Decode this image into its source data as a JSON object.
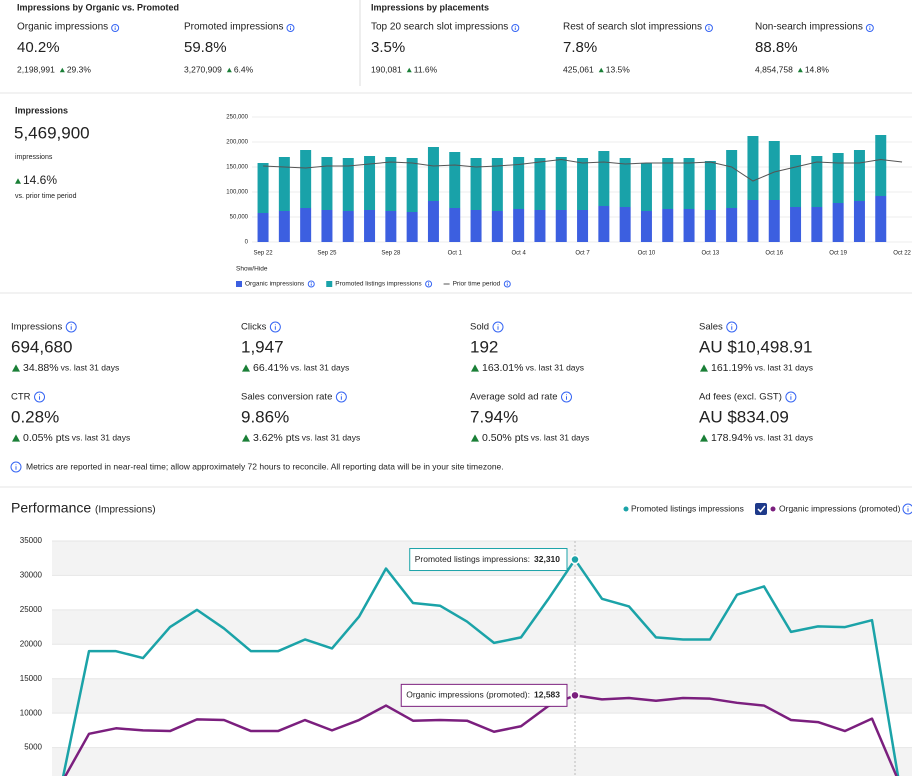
{
  "top": {
    "groups": [
      {
        "title": "Impressions by Organic vs. Promoted",
        "cards": [
          {
            "label": "Organic impressions",
            "value": "40.2%",
            "count": "2,198,991",
            "change": "29.3%"
          },
          {
            "label": "Promoted impressions",
            "value": "59.8%",
            "count": "3,270,909",
            "change": "6.4%"
          }
        ]
      },
      {
        "title": "Impressions by placements",
        "cards": [
          {
            "label": "Top 20 search slot impressions",
            "value": "3.5%",
            "count": "190,081",
            "change": "11.6%"
          },
          {
            "label": "Rest of search slot impressions",
            "value": "7.8%",
            "count": "425,061",
            "change": "13.5%"
          },
          {
            "label": "Non-search impressions",
            "value": "88.8%",
            "count": "4,854,758",
            "change": "14.8%"
          }
        ]
      }
    ]
  },
  "summary": {
    "title": "Impressions",
    "value": "5,469,900",
    "unit": "impressions",
    "change": "14.6%",
    "note": "vs. prior time period"
  },
  "metrics": {
    "cards": [
      {
        "label": "Impressions",
        "value": "694,680",
        "change": "34.88%",
        "note": "vs. last 31 days"
      },
      {
        "label": "Clicks",
        "value": "1,947",
        "change": "66.41%",
        "note": "vs. last 31 days"
      },
      {
        "label": "Sold",
        "value": "192",
        "change": "163.01%",
        "note": "vs. last 31 days"
      },
      {
        "label": "Sales",
        "value": "AU $10,498.91",
        "change": "161.19%",
        "note": "vs. last 31 days"
      },
      {
        "label": "CTR",
        "value": "0.28%",
        "change": "0.05% pts",
        "note": "vs. last 31 days"
      },
      {
        "label": "Sales conversion rate",
        "value": "9.86%",
        "change": "3.62% pts",
        "note": "vs. last 31 days"
      },
      {
        "label": "Average sold ad rate",
        "value": "7.94%",
        "change": "0.50% pts",
        "note": "vs. last 31 days"
      },
      {
        "label": "Ad fees (excl. GST)",
        "value": "AU $834.09",
        "change": "178.94%",
        "note": "vs. last 31 days"
      }
    ],
    "notice": "Metrics are reported in near-real time; allow approximately 72 hours to reconcile. All reporting data will be in your site timezone."
  },
  "chart_data": [
    {
      "type": "bar",
      "stacked": true,
      "legend_title": "Show/Hide",
      "categories": [
        "Sep 22",
        null,
        null,
        "Sep 25",
        null,
        null,
        "Sep 28",
        null,
        null,
        "Oct 1",
        null,
        null,
        "Oct 4",
        null,
        null,
        "Oct 7",
        null,
        null,
        "Oct 10",
        null,
        null,
        "Oct 13",
        null,
        null,
        "Oct 16",
        null,
        null,
        "Oct 19",
        null,
        null,
        "Oct 22"
      ],
      "series": [
        {
          "name": "Organic impressions",
          "color": "#3c5fe0",
          "values": [
            58000,
            62000,
            68000,
            64000,
            62000,
            64000,
            62000,
            60000,
            82000,
            68000,
            64000,
            62000,
            66000,
            64000,
            64000,
            64000,
            72000,
            70000,
            62000,
            66000,
            66000,
            64000,
            68000,
            84000,
            84000,
            70000,
            70000,
            78000,
            82000,
            92000,
            null
          ]
        },
        {
          "name": "Promoted listings impressions",
          "color": "#19a2a9",
          "values": [
            100000,
            108000,
            116000,
            106000,
            106000,
            108000,
            108000,
            108000,
            108000,
            112000,
            104000,
            106000,
            104000,
            104000,
            106000,
            104000,
            110000,
            98000,
            96000,
            102000,
            102000,
            98000,
            116000,
            128000,
            118000,
            104000,
            102000,
            100000,
            102000,
            122000,
            null
          ]
        },
        {
          "name": "Prior time period",
          "type": "line",
          "color": "#555555",
          "values": [
            152000,
            150000,
            148000,
            152000,
            152000,
            156000,
            160000,
            158000,
            152000,
            154000,
            150000,
            152000,
            155000,
            160000,
            165000,
            158000,
            160000,
            156000,
            158000,
            158000,
            158000,
            160000,
            150000,
            122000,
            140000,
            150000,
            160000,
            158000,
            158000,
            165000,
            160000
          ]
        }
      ],
      "ylim": [
        0,
        250000
      ],
      "yticks": [
        0,
        {
          "value": 50000,
          "label": "50,000"
        },
        {
          "value": 100000,
          "label": "100,000"
        },
        {
          "value": 150000,
          "label": "150,000"
        },
        {
          "value": 200000,
          "label": "200,000"
        },
        {
          "value": 250000,
          "label": "250,000"
        }
      ]
    },
    {
      "type": "line",
      "title": "Performance",
      "subtitle": "(Impressions)",
      "categories": [
        null,
        null,
        null,
        null,
        null,
        null,
        null,
        null,
        null,
        null,
        null,
        null,
        null,
        null,
        null,
        null,
        null,
        null,
        null,
        null,
        null,
        null,
        null,
        null,
        null,
        null,
        null,
        null,
        null,
        null,
        null,
        null
      ],
      "series": [
        {
          "name": "Promoted listings impressions",
          "color": "#1ba3a8",
          "values": [
            0,
            19000,
            19000,
            18000,
            22500,
            25000,
            22300,
            19000,
            19000,
            20700,
            19400,
            24000,
            31000,
            26000,
            25600,
            23300,
            20200,
            21000,
            26500,
            32310,
            26600,
            25500,
            21000,
            20700,
            20700,
            27200,
            28400,
            21800,
            22600,
            22500,
            23500,
            0
          ],
          "value_labels": [
            null,
            null,
            null,
            null,
            null,
            null,
            null,
            null,
            null,
            null,
            null,
            null,
            null,
            null,
            null,
            null,
            null,
            null,
            null,
            "32,310",
            null,
            null,
            null,
            null,
            null,
            null,
            null,
            null,
            null,
            null,
            null,
            null
          ]
        },
        {
          "name": "Organic impressions (promoted)",
          "color": "#7b1f7e",
          "values": [
            0,
            7000,
            7800,
            7500,
            7400,
            9100,
            9000,
            7400,
            7400,
            9000,
            7500,
            9000,
            11100,
            8900,
            9000,
            8900,
            7300,
            8100,
            11000,
            12583,
            12000,
            12200,
            11800,
            12200,
            12100,
            11500,
            11100,
            9000,
            8700,
            7400,
            9200,
            0
          ],
          "value_labels": [
            null,
            null,
            null,
            null,
            null,
            null,
            null,
            null,
            null,
            null,
            null,
            null,
            null,
            null,
            null,
            null,
            null,
            null,
            null,
            "12,583",
            null,
            null,
            null,
            null,
            null,
            null,
            null,
            null,
            null,
            null,
            null,
            null
          ]
        }
      ],
      "tooltip_labels": [
        "Promoted listings impressions:",
        "Organic impressions (promoted):"
      ],
      "ylim": [
        0,
        35000
      ],
      "yticks": [
        5000,
        10000,
        15000,
        20000,
        25000,
        30000,
        35000
      ],
      "grid": "bands"
    }
  ]
}
